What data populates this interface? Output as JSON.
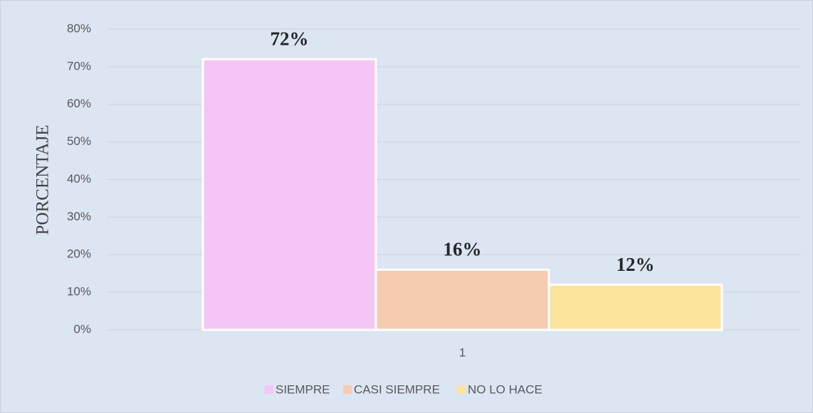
{
  "chart_data": {
    "type": "bar",
    "y_axis_label": "PORCENTAJE",
    "categories": [
      "1"
    ],
    "series": [
      {
        "name": "SIEMPRE",
        "color": "#f5c6f5",
        "values": [
          72
        ],
        "value_labels": [
          "72%"
        ]
      },
      {
        "name": "CASI SIEMPRE",
        "color": "#f7cbb0",
        "values": [
          16
        ],
        "value_labels": [
          "16%"
        ]
      },
      {
        "name": "NO LO HACE",
        "color": "#fde49b",
        "values": [
          12
        ],
        "value_labels": [
          "12%"
        ]
      }
    ],
    "ylim": [
      0,
      80
    ],
    "yticks": [
      {
        "value": 0,
        "label": "0%"
      },
      {
        "value": 10,
        "label": "10%"
      },
      {
        "value": 20,
        "label": "20%"
      },
      {
        "value": 30,
        "label": "30%"
      },
      {
        "value": 40,
        "label": "40%"
      },
      {
        "value": 50,
        "label": "50%"
      },
      {
        "value": 60,
        "label": "60%"
      },
      {
        "value": 70,
        "label": "70%"
      },
      {
        "value": 80,
        "label": "80%"
      }
    ],
    "grid": true,
    "legend": "bottom"
  }
}
